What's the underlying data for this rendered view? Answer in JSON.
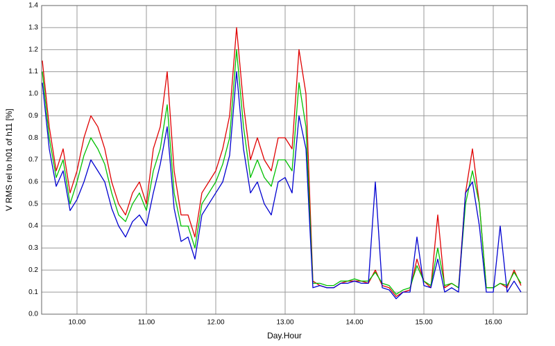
{
  "chart_data": {
    "type": "line",
    "xlabel": "Day.Hour",
    "ylabel": "V RMS rel to h01 of h11 [%]",
    "x": [
      9.5,
      9.6,
      9.7,
      9.8,
      9.9,
      10.0,
      10.1,
      10.2,
      10.3,
      10.4,
      10.5,
      10.6,
      10.7,
      10.8,
      10.9,
      11.0,
      11.1,
      11.2,
      11.3,
      11.4,
      11.5,
      11.6,
      11.7,
      11.8,
      11.9,
      12.0,
      12.1,
      12.2,
      12.3,
      12.4,
      12.5,
      12.6,
      12.7,
      12.8,
      12.9,
      13.0,
      13.1,
      13.2,
      13.3,
      13.4,
      13.5,
      13.6,
      13.7,
      13.8,
      13.9,
      14.0,
      14.1,
      14.2,
      14.3,
      14.4,
      14.5,
      14.6,
      14.7,
      14.8,
      14.9,
      15.0,
      15.1,
      15.2,
      15.3,
      15.4,
      15.5,
      15.6,
      15.7,
      15.8,
      15.9,
      16.0,
      16.1,
      16.2,
      16.3,
      16.4
    ],
    "series": [
      {
        "color": "#e00000",
        "values": [
          1.15,
          0.85,
          0.65,
          0.75,
          0.55,
          0.65,
          0.8,
          0.9,
          0.85,
          0.75,
          0.6,
          0.5,
          0.45,
          0.55,
          0.6,
          0.5,
          0.75,
          0.85,
          1.1,
          0.65,
          0.45,
          0.45,
          0.35,
          0.55,
          0.6,
          0.65,
          0.75,
          0.9,
          1.3,
          0.95,
          0.7,
          0.8,
          0.7,
          0.65,
          0.8,
          0.8,
          0.75,
          1.2,
          1.0,
          0.15,
          0.13,
          0.12,
          0.12,
          0.14,
          0.15,
          0.15,
          0.15,
          0.14,
          0.2,
          0.13,
          0.12,
          0.08,
          0.1,
          0.11,
          0.25,
          0.15,
          0.12,
          0.45,
          0.12,
          0.14,
          0.12,
          0.55,
          0.75,
          0.5,
          0.12,
          0.12,
          0.14,
          0.12,
          0.2,
          0.13
        ]
      },
      {
        "color": "#00c000",
        "values": [
          1.1,
          0.8,
          0.62,
          0.7,
          0.5,
          0.6,
          0.72,
          0.8,
          0.75,
          0.68,
          0.55,
          0.45,
          0.42,
          0.5,
          0.55,
          0.47,
          0.65,
          0.75,
          0.95,
          0.55,
          0.4,
          0.4,
          0.3,
          0.5,
          0.55,
          0.6,
          0.68,
          0.8,
          1.2,
          0.85,
          0.62,
          0.7,
          0.62,
          0.58,
          0.7,
          0.7,
          0.65,
          1.05,
          0.85,
          0.14,
          0.14,
          0.13,
          0.13,
          0.15,
          0.15,
          0.16,
          0.15,
          0.15,
          0.19,
          0.14,
          0.13,
          0.09,
          0.11,
          0.12,
          0.22,
          0.15,
          0.13,
          0.3,
          0.13,
          0.14,
          0.12,
          0.5,
          0.65,
          0.5,
          0.12,
          0.12,
          0.14,
          0.13,
          0.19,
          0.14
        ]
      },
      {
        "color": "#0000d0",
        "values": [
          1.05,
          0.75,
          0.58,
          0.65,
          0.47,
          0.52,
          0.6,
          0.7,
          0.65,
          0.6,
          0.48,
          0.4,
          0.35,
          0.42,
          0.45,
          0.4,
          0.55,
          0.68,
          0.85,
          0.48,
          0.33,
          0.35,
          0.25,
          0.45,
          0.5,
          0.55,
          0.6,
          0.72,
          1.1,
          0.75,
          0.55,
          0.6,
          0.5,
          0.45,
          0.6,
          0.62,
          0.55,
          0.9,
          0.75,
          0.12,
          0.13,
          0.12,
          0.12,
          0.14,
          0.14,
          0.15,
          0.14,
          0.14,
          0.6,
          0.12,
          0.11,
          0.07,
          0.1,
          0.1,
          0.35,
          0.13,
          0.12,
          0.25,
          0.1,
          0.12,
          0.1,
          0.55,
          0.6,
          0.4,
          0.1,
          0.1,
          0.4,
          0.1,
          0.15,
          0.1
        ]
      }
    ],
    "xlim": [
      9.49,
      16.49
    ],
    "ylim": [
      0,
      1.4
    ],
    "xticks": [
      {
        "value": 10,
        "label": "10.00"
      },
      {
        "value": 11,
        "label": "11.00"
      },
      {
        "value": 12,
        "label": "12.00"
      },
      {
        "value": 13,
        "label": "13.00"
      },
      {
        "value": 14,
        "label": "14.00"
      },
      {
        "value": 15,
        "label": "15.00"
      },
      {
        "value": 16,
        "label": "16.00"
      }
    ],
    "yticks": [
      {
        "value": 0,
        "label": "0.0"
      },
      0.1,
      0.2,
      0.3,
      0.4,
      0.5,
      0.6,
      0.7,
      0.8,
      0.9,
      {
        "value": 1,
        "label": "1.0"
      },
      1.1,
      1.2,
      1.3,
      1.4
    ],
    "grid": true
  }
}
